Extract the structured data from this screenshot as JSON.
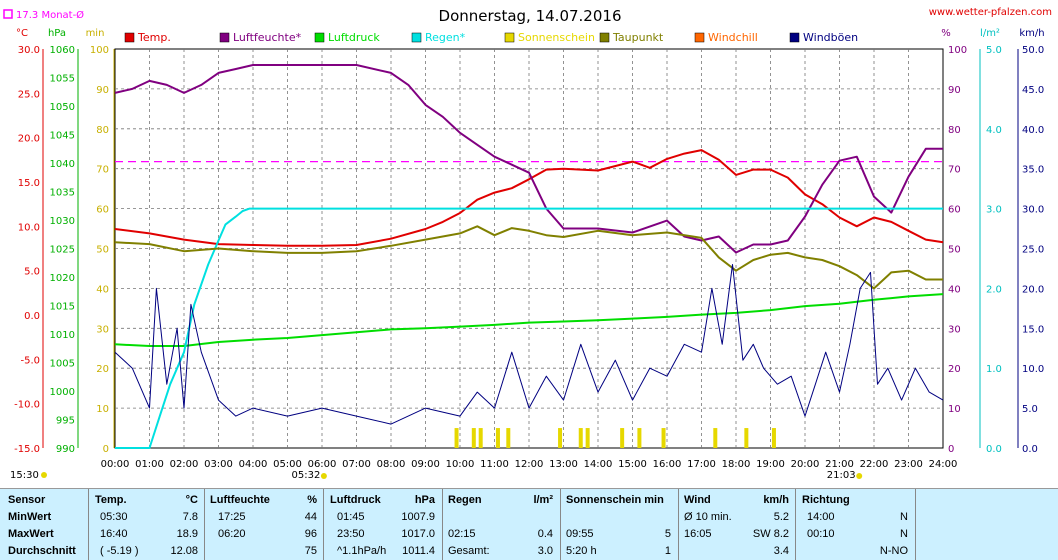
{
  "header": {
    "title": "Donnerstag, 14.07.2016",
    "url": "www.wetter-pfalzen.com",
    "monthly_avg": "17.3 Monat-Ø"
  },
  "axes": {
    "left_units": [
      "°C",
      "hPa",
      "min"
    ],
    "right_units": [
      "%",
      "l/m²",
      "km/h"
    ],
    "temp_ticks": [
      "30.0",
      "25.0",
      "20.0",
      "15.0",
      "10.0",
      "5.0",
      "0.0",
      "-5.0",
      "-10.0",
      "-15.0"
    ],
    "hpa_ticks": [
      "1060",
      "1055",
      "1050",
      "1045",
      "1040",
      "1035",
      "1030",
      "1025",
      "1020",
      "1015",
      "1010",
      "1005",
      "1000",
      "995",
      "990"
    ],
    "min_ticks": [
      "100",
      "90",
      "80",
      "70",
      "60",
      "50",
      "40",
      "30",
      "20",
      "10",
      "0"
    ],
    "pct_ticks": [
      "100",
      "90",
      "80",
      "70",
      "60",
      "50",
      "40",
      "30",
      "20",
      "10",
      "0"
    ],
    "rain_ticks": [
      "5.0",
      "4.0",
      "3.0",
      "2.0",
      "1.0",
      "0.0"
    ],
    "wind_ticks": [
      "50.0",
      "45.0",
      "40.0",
      "35.0",
      "30.0",
      "25.0",
      "20.0",
      "15.0",
      "10.0",
      "5.0",
      "0.0"
    ],
    "time_ticks": [
      "00:00",
      "01:00",
      "02:00",
      "03:00",
      "04:00",
      "05:00",
      "06:00",
      "07:00",
      "08:00",
      "09:00",
      "10:00",
      "11:00",
      "12:00",
      "13:00",
      "14:00",
      "15:00",
      "16:00",
      "17:00",
      "18:00",
      "19:00",
      "20:00",
      "21:00",
      "22:00",
      "23:00",
      "24:00"
    ],
    "sunrise": "05:32",
    "sunset": "21:03",
    "sunshine_start": "15:30"
  },
  "legend": [
    {
      "label": "Temp.",
      "color": "#e00000"
    },
    {
      "label": "Luftfeuchte*",
      "color": "#800080"
    },
    {
      "label": "Luftdruck",
      "color": "#00dd00"
    },
    {
      "label": "Regen*",
      "color": "#00e0e0"
    },
    {
      "label": "Sonnenschein",
      "color": "#e6d800"
    },
    {
      "label": "Taupunkt",
      "color": "#808000"
    },
    {
      "label": "Windchill",
      "color": "#ff6600"
    },
    {
      "label": "Windböen",
      "color": "#000080"
    }
  ],
  "colors": {
    "temp": "#e00000",
    "humidity": "#800080",
    "pressure": "#00dd00",
    "rain": "#00e0e0",
    "sun": "#e6d800",
    "dew": "#808000",
    "wind": "#000080",
    "monthly": "#ff00ff"
  },
  "chart_data": {
    "type": "line",
    "title": "Donnerstag, 14.07.2016",
    "x_hours": [
      0,
      1,
      2,
      3,
      4,
      5,
      6,
      7,
      8,
      9,
      10,
      11,
      12,
      13,
      14,
      15,
      16,
      17,
      18,
      19,
      20,
      21,
      22,
      23,
      24
    ],
    "temp_monthly_avg": 17.3,
    "temp_ylim": [
      -15,
      30
    ],
    "pressure_ylim": [
      990,
      1060
    ],
    "percent_ylim": [
      0,
      100
    ],
    "rain_ylim": [
      0,
      5
    ],
    "wind_ylim": [
      0,
      50
    ],
    "series": [
      {
        "name": "Temp.",
        "axis": "temp",
        "x": [
          0,
          1,
          2,
          3,
          4,
          5,
          6,
          7,
          8,
          9,
          9.5,
          10,
          10.5,
          11,
          11.5,
          12,
          12.5,
          13,
          14,
          15,
          15.5,
          16,
          16.5,
          17,
          17.5,
          18,
          18.5,
          19,
          19.5,
          20,
          20.5,
          21,
          21.5,
          22,
          22.5,
          23,
          23.5,
          24
        ],
        "values": [
          9.7,
          9.2,
          8.5,
          8.0,
          7.9,
          7.8,
          7.8,
          7.9,
          8.6,
          9.7,
          10.5,
          11.5,
          13.0,
          13.8,
          14.3,
          15.3,
          16.4,
          16.5,
          16.3,
          17.3,
          16.6,
          17.6,
          18.2,
          18.6,
          17.5,
          15.8,
          16.4,
          16.4,
          15.5,
          13.6,
          12.5,
          11.0,
          10.0,
          11.0,
          10.5,
          9.5,
          8.5,
          8.2
        ]
      },
      {
        "name": "Luftfeuchte*",
        "axis": "percent",
        "x": [
          0,
          0.5,
          1,
          1.5,
          2,
          2.5,
          3,
          3.5,
          4,
          5,
          6,
          7,
          8,
          8.5,
          9,
          9.5,
          10,
          10.5,
          11,
          11.5,
          12,
          12.5,
          13,
          14,
          15,
          16,
          16.5,
          17,
          17.5,
          18,
          18.5,
          19,
          19.5,
          20,
          20.5,
          21,
          21.5,
          22,
          22.5,
          23,
          23.5,
          24
        ],
        "values": [
          89,
          90,
          92,
          91,
          89,
          91,
          94,
          95,
          96,
          96,
          96,
          96,
          94,
          91,
          86,
          83,
          79,
          76,
          73,
          71,
          69,
          60,
          55,
          55,
          54,
          57,
          53,
          52,
          53,
          49,
          51,
          51,
          52,
          58,
          66,
          72,
          73,
          63,
          59,
          68,
          75,
          75
        ]
      },
      {
        "name": "Luftdruck",
        "axis": "pressure",
        "x": [
          0,
          1,
          2,
          3,
          4,
          5,
          6,
          7,
          8,
          9,
          10,
          11,
          12,
          13,
          14,
          15,
          16,
          17,
          18,
          19,
          20,
          21,
          22,
          23,
          24
        ],
        "values": [
          1008.2,
          1007.9,
          1007.9,
          1008.6,
          1009.0,
          1009.3,
          1009.8,
          1010.3,
          1010.8,
          1011.0,
          1011.3,
          1011.6,
          1012.0,
          1012.2,
          1012.4,
          1012.7,
          1013.0,
          1013.4,
          1013.7,
          1014.2,
          1014.9,
          1015.3,
          1016.0,
          1016.6,
          1017.0
        ]
      },
      {
        "name": "Regen*",
        "axis": "rain",
        "x": [
          0,
          1.0,
          1.3,
          1.6,
          2.0,
          2.3,
          2.7,
          3.0,
          3.2,
          3.5,
          3.7,
          3.9,
          4.1,
          4.5,
          24
        ],
        "values": [
          0,
          0,
          0.4,
          0.8,
          1.2,
          1.8,
          2.3,
          2.6,
          2.8,
          2.9,
          2.97,
          3.0,
          3.0,
          3.0,
          3.0
        ]
      },
      {
        "name": "Sonnenschein",
        "axis": "percent",
        "x": [
          9.9,
          10.4,
          10.6,
          11.1,
          11.4,
          12.9,
          13.5,
          13.7,
          14.7,
          15.2,
          15.9,
          17.4,
          18.3,
          19.1
        ],
        "values": [
          5,
          5,
          5,
          5,
          5,
          5,
          5,
          5,
          5,
          5,
          5,
          5,
          5,
          5
        ]
      },
      {
        "name": "Taupunkt",
        "axis": "temp",
        "x": [
          0,
          1,
          2,
          3,
          4,
          5,
          6,
          7,
          8,
          9,
          10,
          10.5,
          11,
          11.5,
          12,
          12.5,
          13,
          14,
          15,
          16,
          17,
          17.5,
          18,
          18.5,
          19,
          19.5,
          20,
          20.5,
          21,
          21.5,
          22,
          22.5,
          23,
          23.5,
          24
        ],
        "values": [
          8.2,
          8.0,
          7.2,
          7.5,
          7.2,
          7.0,
          7.0,
          7.2,
          7.8,
          8.5,
          9.2,
          10.0,
          9.0,
          9.8,
          9.5,
          9.0,
          8.8,
          9.5,
          9.0,
          9.3,
          8.7,
          6.5,
          5.0,
          6.2,
          6.8,
          7.0,
          6.5,
          6.2,
          5.5,
          4.5,
          3.0,
          4.8,
          5.0,
          4.0,
          4.0
        ]
      },
      {
        "name": "Windböen",
        "axis": "wind",
        "x": [
          0,
          0.5,
          1,
          1.2,
          1.5,
          1.8,
          2,
          2.2,
          2.5,
          3,
          3.5,
          4,
          5,
          6,
          7,
          8,
          9,
          10,
          10.5,
          11,
          11.5,
          12,
          12.5,
          13,
          13.5,
          14,
          14.5,
          15,
          15.5,
          16,
          16.5,
          17,
          17.3,
          17.6,
          17.9,
          18.2,
          18.5,
          18.8,
          19.2,
          19.6,
          20,
          20.3,
          20.6,
          21,
          21.3,
          21.6,
          21.9,
          22.1,
          22.4,
          22.8,
          23.2,
          23.6,
          24
        ],
        "values": [
          12,
          10,
          5,
          20,
          8,
          15,
          5,
          18,
          12,
          6,
          4,
          5,
          4,
          5,
          4,
          3,
          5,
          4,
          7,
          5,
          12,
          5,
          9,
          6,
          13,
          7,
          11,
          6,
          10,
          9,
          13,
          12,
          20,
          13,
          23,
          11,
          13,
          10,
          8,
          9,
          4,
          8,
          12,
          7,
          13,
          20,
          22,
          8,
          10,
          6,
          10,
          7,
          6
        ]
      }
    ]
  },
  "stats": {
    "headers": [
      {
        "label": "Sensor"
      },
      {
        "label": "Temp.",
        "unit": "°C"
      },
      {
        "label": "Luftfeuchte",
        "unit": "%"
      },
      {
        "label": "Luftdruck",
        "unit": "hPa"
      },
      {
        "label": "Regen",
        "unit": "l/m²"
      },
      {
        "label": "Sonnenschein min"
      },
      {
        "label": "Wind",
        "unit": "km/h"
      },
      {
        "label": "Richtung"
      }
    ],
    "rows": [
      {
        "label": "MinWert",
        "temp_t": "05:30",
        "temp_v": "7.8",
        "hum_t": "17:25",
        "hum_v": "44",
        "pres_t": "01:45",
        "pres_v": "1007.9",
        "rain_t": "",
        "rain_v": "",
        "sun_t": "",
        "sun_v": "",
        "wind_t": "Ø 10 min.",
        "wind_v": "5.2",
        "dir_t": "14:00",
        "dir_v": "N"
      },
      {
        "label": "MaxWert",
        "temp_t": "16:40",
        "temp_v": "18.9",
        "hum_t": "06:20",
        "hum_v": "96",
        "pres_t": "23:50",
        "pres_v": "1017.0",
        "rain_t": "02:15",
        "rain_v": "0.4",
        "sun_t": "09:55",
        "sun_v": "5",
        "wind_t": "16:05",
        "wind_v": "SW 8.2",
        "dir_t": "00:10",
        "dir_v": "N"
      },
      {
        "label": "Durchschnitt",
        "temp_t": "( -5.19 )",
        "temp_v": "12.08",
        "hum_t": "",
        "hum_v": "75",
        "pres_t": "^1.1hPa/h",
        "pres_v": "1011.4",
        "rain_t": "Gesamt:",
        "rain_v": "3.0",
        "sun_t": "5:20 h",
        "sun_v": "1",
        "wind_t": "",
        "wind_v": "3.4",
        "dir_t": "",
        "dir_v": "N-NO"
      }
    ]
  }
}
